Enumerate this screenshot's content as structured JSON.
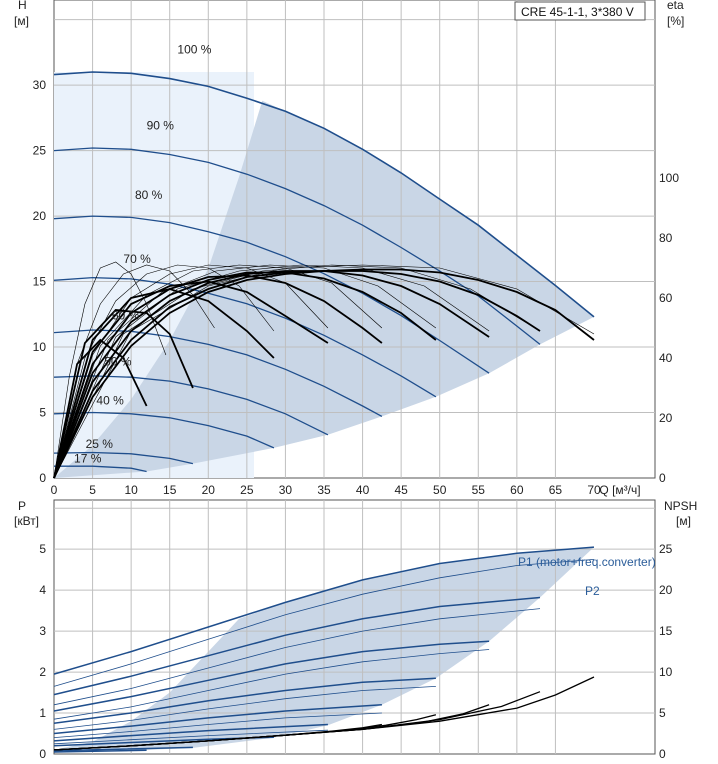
{
  "chart_data": [
    {
      "type": "line",
      "model": "CRE 45-1-1, 3*380 V",
      "xlabel": "Q [м³/ч]",
      "ylabel": "H",
      "ylabel_unit": "[м]",
      "y2label": "eta",
      "y2label_unit": "[%]",
      "xlim": [
        0,
        70
      ],
      "ylim": [
        0,
        36.5
      ],
      "y2lim": [
        0,
        100
      ],
      "x_ticks": [
        "0",
        "5",
        "10",
        "15",
        "20",
        "25",
        "30",
        "35",
        "40",
        "45",
        "50",
        "55",
        "60",
        "65",
        "70",
        "Q [м³/ч]"
      ],
      "y_ticks": [
        "0",
        "5",
        "10",
        "15",
        "20",
        "25",
        "30"
      ],
      "y2_ticks": [
        "0",
        "20",
        "40",
        "60",
        "80",
        "100"
      ],
      "grid": true,
      "head_curves": [
        {
          "label": "100 %",
          "x": [
            0,
            5,
            10,
            15,
            20,
            25,
            30,
            35,
            40,
            45,
            50,
            55,
            60,
            65,
            70
          ],
          "y": [
            30.8,
            31.0,
            30.9,
            30.5,
            29.9,
            29.0,
            28.0,
            26.7,
            25.1,
            23.3,
            21.3,
            19.3,
            17.0,
            14.7,
            12.3
          ]
        },
        {
          "label": "90 %",
          "x": [
            0,
            5,
            10,
            15,
            20,
            25,
            30,
            35,
            40,
            45,
            50,
            55,
            60,
            63
          ],
          "y": [
            25.0,
            25.2,
            25.1,
            24.7,
            24.1,
            23.2,
            22.1,
            20.8,
            19.3,
            17.6,
            15.8,
            13.9,
            11.6,
            10.2
          ]
        },
        {
          "label": "80 %",
          "x": [
            0,
            5,
            10,
            15,
            20,
            25,
            30,
            35,
            40,
            45,
            50,
            56.4
          ],
          "y": [
            19.8,
            20.0,
            19.9,
            19.5,
            18.8,
            18.0,
            16.9,
            15.6,
            14.1,
            12.4,
            10.5,
            8.0
          ]
        },
        {
          "label": "70 %",
          "x": [
            0,
            5,
            10,
            15,
            20,
            25,
            30,
            35,
            40,
            45,
            49.5
          ],
          "y": [
            15.1,
            15.3,
            15.2,
            14.8,
            14.1,
            13.3,
            12.2,
            10.9,
            9.4,
            7.8,
            6.2
          ]
        },
        {
          "label": "60 %",
          "x": [
            0,
            5,
            10,
            15,
            20,
            25,
            30,
            35,
            40,
            42.5
          ],
          "y": [
            11.1,
            11.3,
            11.2,
            10.8,
            10.2,
            9.4,
            8.3,
            7.0,
            5.5,
            4.7
          ]
        },
        {
          "label": "50 %",
          "x": [
            0,
            5,
            10,
            15,
            20,
            25,
            30,
            35.5
          ],
          "y": [
            7.7,
            7.8,
            7.7,
            7.4,
            6.8,
            6.0,
            4.9,
            3.3
          ]
        },
        {
          "label": "40 %",
          "x": [
            0,
            5,
            10,
            15,
            20,
            25,
            28.5
          ],
          "y": [
            4.9,
            5.0,
            4.9,
            4.6,
            4.0,
            3.2,
            2.3
          ]
        },
        {
          "label": "25 %",
          "x": [
            0,
            5,
            10,
            15,
            18
          ],
          "y": [
            1.9,
            1.95,
            1.85,
            1.5,
            1.1
          ]
        },
        {
          "label": "17 %",
          "x": [
            0,
            5,
            10,
            12
          ],
          "y": [
            0.9,
            0.9,
            0.75,
            0.5
          ]
        }
      ],
      "efficiency_curves_eta_percent": [
        {
          "x": [
            0,
            5,
            10,
            15,
            20,
            25,
            30,
            35,
            40,
            45,
            50,
            55,
            60,
            65,
            70
          ],
          "y": [
            0,
            27,
            44,
            55,
            62,
            66,
            68,
            69,
            69.5,
            69.5,
            68.5,
            66,
            62,
            56,
            46
          ]
        },
        {
          "x": [
            0,
            5,
            10,
            15,
            20,
            25,
            30,
            35,
            40,
            45,
            50,
            55,
            60,
            63
          ],
          "y": [
            0,
            29,
            46,
            57,
            63,
            67,
            68.5,
            69,
            69,
            68,
            65.5,
            61,
            54,
            49
          ]
        },
        {
          "x": [
            0,
            5,
            10,
            15,
            20,
            25,
            30,
            35,
            40,
            45,
            50,
            56.4
          ],
          "y": [
            0,
            32,
            49,
            59,
            65,
            68,
            69,
            69,
            67.5,
            64,
            58,
            47
          ]
        },
        {
          "x": [
            0,
            5,
            10,
            15,
            20,
            25,
            30,
            35,
            40,
            45,
            49.5
          ],
          "y": [
            0,
            35,
            52,
            61,
            66,
            68.5,
            68.5,
            66.5,
            62,
            55,
            46
          ]
        },
        {
          "x": [
            0,
            5,
            10,
            15,
            20,
            25,
            30,
            35,
            40,
            42.5
          ],
          "y": [
            0,
            38,
            55,
            63,
            67,
            67.5,
            65,
            59,
            50,
            45
          ]
        },
        {
          "x": [
            0,
            5,
            10,
            15,
            20,
            25,
            30,
            35.5
          ],
          "y": [
            0,
            42,
            58,
            64,
            65.5,
            62,
            54,
            45
          ]
        },
        {
          "x": [
            0,
            5,
            10,
            15,
            20,
            25,
            28.5
          ],
          "y": [
            0,
            46,
            60,
            63,
            59,
            49,
            40
          ]
        },
        {
          "x": [
            0,
            4,
            8,
            12,
            15,
            18
          ],
          "y": [
            0,
            45,
            56,
            55,
            48,
            30
          ]
        },
        {
          "x": [
            0,
            3,
            6,
            9,
            12
          ],
          "y": [
            0,
            38,
            46,
            40,
            24
          ]
        }
      ],
      "efficiency_thin_curves_eta_percent": [
        {
          "x": [
            0,
            2,
            4,
            6,
            8,
            10,
            12,
            14.5
          ],
          "y": [
            0,
            34,
            58,
            70,
            72,
            68,
            58,
            41
          ]
        },
        {
          "x": [
            0,
            3,
            6,
            9,
            12,
            15,
            18,
            20.8
          ],
          "y": [
            0,
            38,
            58,
            68,
            71,
            69,
            61,
            50
          ]
        },
        {
          "x": [
            0,
            4,
            8,
            12,
            16,
            20,
            24,
            28.5
          ],
          "y": [
            0,
            40,
            59,
            68,
            71,
            70,
            64,
            49
          ]
        },
        {
          "x": [
            0,
            5,
            10,
            15,
            20,
            25,
            30,
            35.5
          ],
          "y": [
            0,
            41,
            60,
            68,
            71,
            70,
            65,
            50
          ]
        },
        {
          "x": [
            0,
            6,
            12,
            18,
            24,
            30,
            36,
            42.5
          ],
          "y": [
            0,
            44,
            61,
            69,
            71,
            70,
            65,
            50
          ]
        },
        {
          "x": [
            0,
            7,
            14,
            21,
            28,
            35,
            42,
            49.5
          ],
          "y": [
            0,
            46,
            62,
            69,
            71,
            70,
            64,
            50
          ]
        },
        {
          "x": [
            0,
            8,
            16,
            24,
            32,
            40,
            48,
            56.4
          ],
          "y": [
            0,
            47,
            63,
            69,
            71,
            70,
            64,
            49
          ]
        },
        {
          "x": [
            0,
            9,
            18,
            27,
            36,
            45,
            54,
            63
          ],
          "y": [
            0,
            48,
            63,
            69,
            71,
            70,
            63,
            49
          ]
        },
        {
          "x": [
            0,
            10,
            20,
            30,
            40,
            50,
            60,
            70
          ],
          "y": [
            0,
            49,
            64,
            70,
            71,
            70,
            63,
            48
          ]
        }
      ],
      "operating_range_fill": {
        "x": [
          0,
          12,
          18,
          28.5,
          35.5,
          42.5,
          49.5,
          56.4,
          63,
          70,
          65,
          60,
          55,
          50,
          45,
          40,
          35,
          30,
          27,
          24,
          20,
          15,
          10,
          5,
          0
        ],
        "y": [
          0,
          0.5,
          1.1,
          2.3,
          3.3,
          4.7,
          6.2,
          8.0,
          10.2,
          12.3,
          14.7,
          17.0,
          19.3,
          21.3,
          23.3,
          25.1,
          26.7,
          28.0,
          28.8,
          23.0,
          16.0,
          10.5,
          6.0,
          2.5,
          0
        ]
      }
    },
    {
      "type": "line",
      "xlabel": "",
      "ylabel": "P",
      "ylabel_unit": "[кВт]",
      "y2label": "NPSH",
      "y2label_unit": "[м]",
      "xlim": [
        0,
        70
      ],
      "ylim": [
        0,
        6.2
      ],
      "y2lim": [
        0,
        31
      ],
      "y_ticks": [
        "0",
        "1",
        "2",
        "3",
        "4",
        "5"
      ],
      "y2_ticks": [
        "0",
        "5",
        "10",
        "15",
        "20",
        "25"
      ],
      "grid": true,
      "legend": [
        "P1 (motor+freq.converter)",
        "P2"
      ],
      "legend_placement": "top-right",
      "power_p1_curves": [
        {
          "x": [
            0,
            10,
            20,
            30,
            40,
            50,
            60,
            70
          ],
          "y": [
            1.95,
            2.5,
            3.1,
            3.7,
            4.25,
            4.65,
            4.9,
            5.05
          ]
        },
        {
          "x": [
            0,
            10,
            20,
            30,
            40,
            50,
            63
          ],
          "y": [
            1.45,
            1.9,
            2.4,
            2.9,
            3.3,
            3.6,
            3.82
          ]
        },
        {
          "x": [
            0,
            10,
            20,
            30,
            40,
            50,
            56.4
          ],
          "y": [
            1.05,
            1.4,
            1.8,
            2.2,
            2.5,
            2.68,
            2.75
          ]
        },
        {
          "x": [
            0,
            10,
            20,
            30,
            40,
            49.5
          ],
          "y": [
            0.75,
            1.0,
            1.3,
            1.55,
            1.75,
            1.85
          ]
        },
        {
          "x": [
            0,
            10,
            20,
            30,
            42.5
          ],
          "y": [
            0.5,
            0.68,
            0.88,
            1.05,
            1.2
          ]
        },
        {
          "x": [
            0,
            10,
            20,
            35.5
          ],
          "y": [
            0.32,
            0.45,
            0.57,
            0.72
          ]
        },
        {
          "x": [
            0,
            10,
            20,
            28.5
          ],
          "y": [
            0.2,
            0.28,
            0.36,
            0.41
          ]
        },
        {
          "x": [
            0,
            9,
            18
          ],
          "y": [
            0.08,
            0.12,
            0.16
          ]
        },
        {
          "x": [
            0,
            6,
            12
          ],
          "y": [
            0.05,
            0.07,
            0.09
          ]
        }
      ],
      "power_p2_curves": [
        {
          "x": [
            0,
            10,
            20,
            30,
            40,
            50,
            60,
            70
          ],
          "y": [
            1.65,
            2.2,
            2.8,
            3.4,
            3.9,
            4.3,
            4.6,
            4.75
          ]
        },
        {
          "x": [
            0,
            10,
            20,
            30,
            40,
            50,
            63
          ],
          "y": [
            1.2,
            1.6,
            2.1,
            2.6,
            3.0,
            3.3,
            3.55
          ]
        },
        {
          "x": [
            0,
            10,
            20,
            30,
            40,
            50,
            56.4
          ],
          "y": [
            0.85,
            1.15,
            1.55,
            1.95,
            2.25,
            2.45,
            2.55
          ]
        },
        {
          "x": [
            0,
            10,
            20,
            30,
            40,
            49.5
          ],
          "y": [
            0.6,
            0.82,
            1.1,
            1.35,
            1.55,
            1.65
          ]
        },
        {
          "x": [
            0,
            10,
            20,
            30,
            42.5
          ],
          "y": [
            0.4,
            0.55,
            0.72,
            0.88,
            1.0
          ]
        },
        {
          "x": [
            0,
            10,
            20,
            35.5
          ],
          "y": [
            0.25,
            0.35,
            0.45,
            0.58
          ]
        }
      ],
      "npsh_curves_m": [
        {
          "x": [
            0,
            10,
            20,
            30,
            40,
            50,
            60,
            65,
            70
          ],
          "y": [
            0.5,
            1.0,
            1.6,
            2.3,
            3.0,
            4.0,
            5.6,
            7.2,
            9.4
          ]
        },
        {
          "x": [
            0,
            10,
            20,
            30,
            40,
            50,
            58,
            63
          ],
          "y": [
            0.5,
            1.0,
            1.6,
            2.3,
            3.0,
            4.2,
            5.8,
            7.6
          ]
        },
        {
          "x": [
            0,
            10,
            20,
            30,
            40,
            48,
            53,
            56.4
          ],
          "y": [
            0.5,
            1.0,
            1.6,
            2.3,
            3.0,
            3.9,
            4.9,
            6.0
          ]
        },
        {
          "x": [
            0,
            10,
            20,
            30,
            38,
            43,
            47,
            49.5
          ],
          "y": [
            0.5,
            1.0,
            1.6,
            2.3,
            2.9,
            3.5,
            4.2,
            4.8
          ]
        },
        {
          "x": [
            0,
            10,
            20,
            30,
            36,
            40,
            42.5
          ],
          "y": [
            0.5,
            1.0,
            1.6,
            2.3,
            2.8,
            3.2,
            3.6
          ]
        }
      ],
      "operating_range_fill": {
        "x": [
          0,
          12,
          18,
          28.5,
          35.5,
          42.5,
          49.5,
          56.4,
          63,
          70,
          65,
          60,
          55,
          50,
          45,
          40,
          35,
          30,
          27,
          24,
          20,
          15,
          10,
          5,
          0
        ],
        "y": [
          0.1,
          0.1,
          0.15,
          0.4,
          0.7,
          1.2,
          1.85,
          2.75,
          3.82,
          5.05,
          4.98,
          4.9,
          4.78,
          4.65,
          4.45,
          4.25,
          4.0,
          3.7,
          3.5,
          3.3,
          2.5,
          1.5,
          0.8,
          0.3,
          0.1
        ]
      }
    }
  ],
  "labels": {
    "model": "CRE 45-1-1, 3*380 V",
    "h_title": "H",
    "h_unit": "[м]",
    "eta_title": "eta",
    "eta_unit": "[%]",
    "q_title": "Q [м³/ч]",
    "p_title": "P",
    "p_unit": "[кВт]",
    "npsh_title": "NPSH",
    "npsh_unit": "[м]",
    "legend_p1": "P1 (motor+freq.converter)",
    "legend_p2": "P2"
  },
  "colors": {
    "head_curve": "#1f4e8c",
    "eff_curve": "#000000",
    "fill_dark": "#c9d6e6",
    "fill_light": "#eaf2fb",
    "grid": "#bfbfbf",
    "legend_text": "#2b5d9a"
  }
}
